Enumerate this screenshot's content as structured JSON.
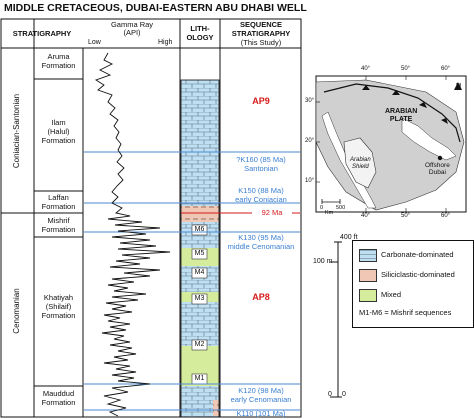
{
  "title": "MIDDLE CRETACEOUS, DUBAI-EASTERN ABU DHABI WELL",
  "headers": {
    "stratigraphy": "STRATIGRAPHY",
    "gamma_ray": "Gamma Ray",
    "gamma_unit": "(API)",
    "low": "Low",
    "high": "High",
    "lithology_1": "LITH-",
    "lithology_2": "OLOGY",
    "sequence_1": "SEQUENCE",
    "sequence_2": "STRATIGRAPHY",
    "sequence_3": "(This Study)"
  },
  "stages": {
    "coniacian_santonian": "Coniacian-Santonian",
    "cenomanian": "Cenomanian"
  },
  "formations": {
    "aruma": [
      "Aruma",
      "Formation"
    ],
    "ilam": [
      "Ilam",
      "(Halul)",
      "Formation"
    ],
    "laffan": [
      "Laffan",
      "Formation"
    ],
    "mishrif": [
      "Mishrif",
      "Formation"
    ],
    "khatiyah": [
      "Khatiyah",
      "(Shilaif)",
      "Formation"
    ],
    "mauddud": [
      "Mauddud",
      "Formation"
    ]
  },
  "sequences": {
    "ap9": "AP9",
    "ap8": "AP8",
    "k160": [
      "?K160 (85 Ma)",
      "Santonian"
    ],
    "k150": [
      "K150 (88 Ma)",
      "early Coniacian"
    ],
    "ma92": "92 Ma",
    "k130": [
      "K130 (95 Ma)",
      "middle Cenomanian"
    ],
    "k120": [
      "K120 (98 Ma)",
      "early Cenomanian"
    ],
    "k110": "K110 (101 Ma)"
  },
  "mishrif_sequences": [
    "M6",
    "M5",
    "M4",
    "M3",
    "M2",
    "M1"
  ],
  "map": {
    "north": "N",
    "plate": [
      "ARABIAN",
      "PLATE"
    ],
    "shield": [
      "Arabian",
      "Shield"
    ],
    "well": [
      "Offshore",
      "Dubai"
    ],
    "lon_labels": [
      "40°",
      "50°",
      "60°",
      "40°",
      "50°",
      "60°"
    ],
    "lat_labels": [
      "30°",
      "20°",
      "10°"
    ],
    "scale": [
      "0",
      "500",
      "Km"
    ]
  },
  "scale_bar": {
    "top": "400 ft",
    "mid": "100 m",
    "zero_m": "0",
    "zero_ft": "0"
  },
  "legend": {
    "carbonate": "Carbonate-dominated",
    "siliciclastic": "Siliciclastic-dominated",
    "mixed": "Mixed",
    "mishrif_note": "M1-M6 = Mishrif sequences"
  },
  "colors": {
    "carbonate": "#bfe0f2",
    "siliciclastic": "#f0c7b4",
    "mixed": "#d5ec9d",
    "sequence_line": "#4b8ad6",
    "maximum_flooding": "#d61a1a"
  }
}
